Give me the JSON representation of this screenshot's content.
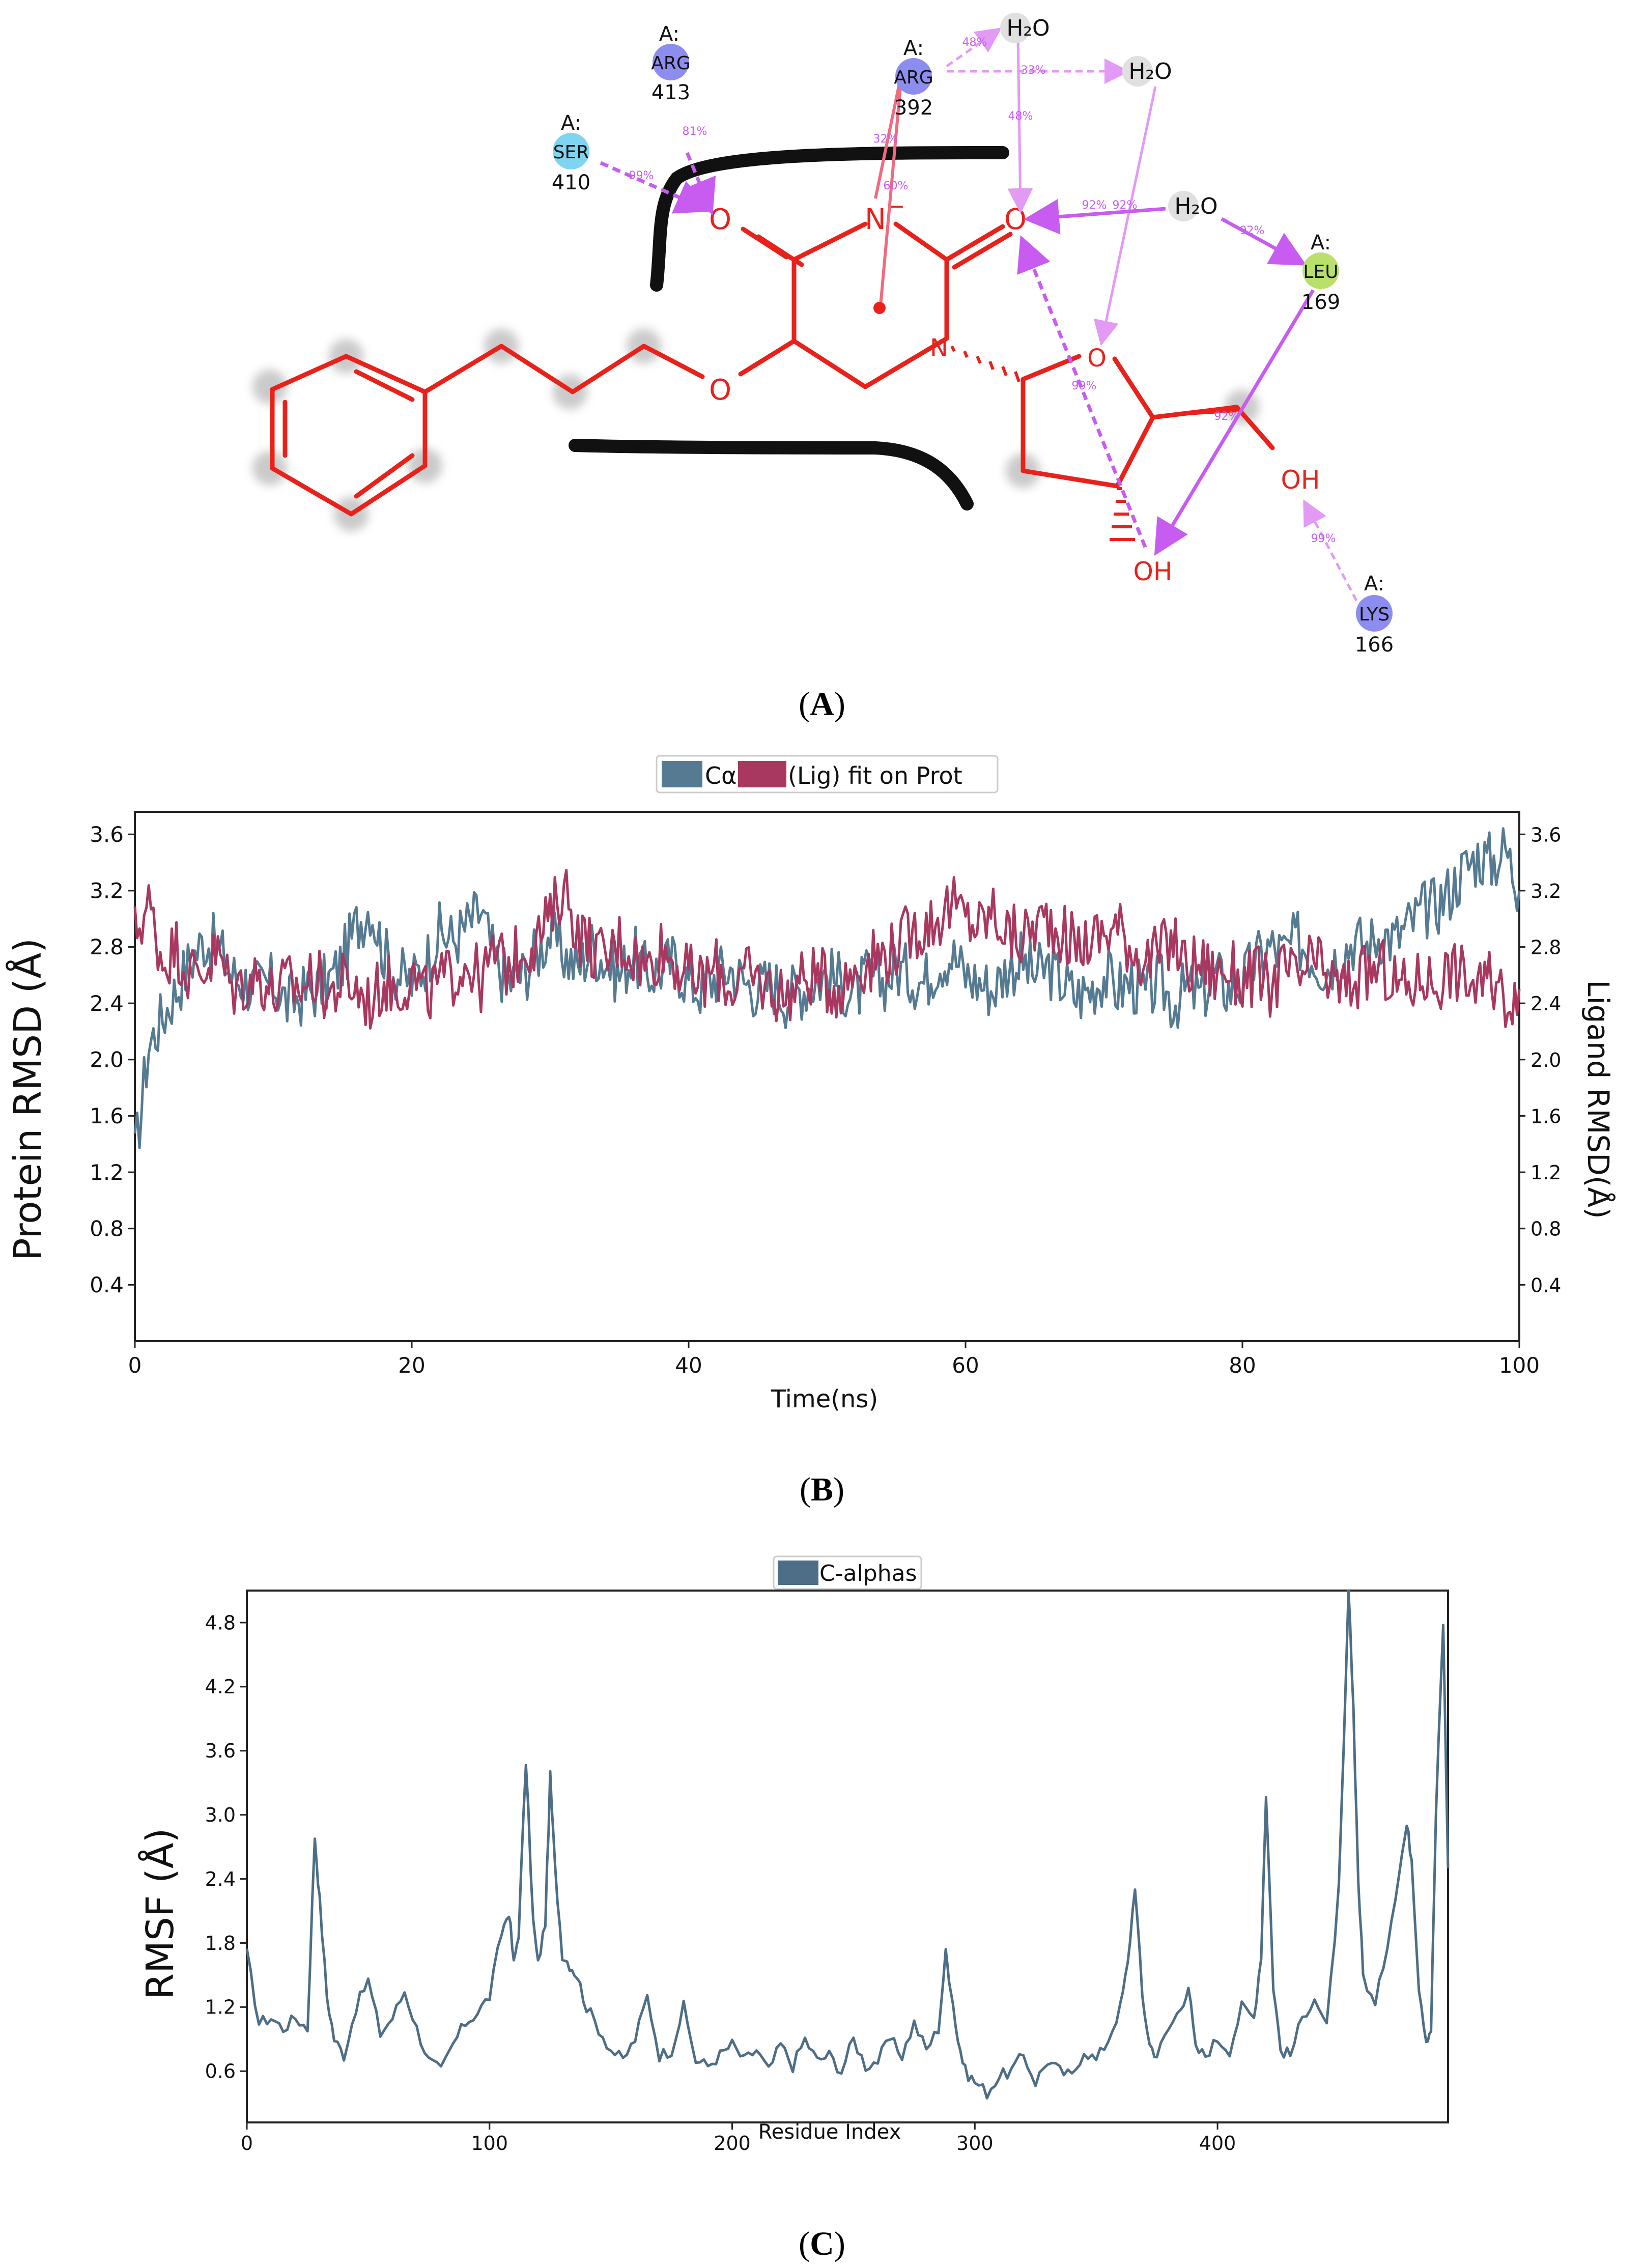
{
  "figure": {
    "caption_a": "(A)",
    "caption_a_letter": "A",
    "caption_b": "(B)",
    "caption_b_letter": "B",
    "caption_c": "(C)",
    "caption_c_letter": "C"
  },
  "panel_a": {
    "title": "ligand interaction diagram",
    "residues": [
      {
        "chain": "A:",
        "name": "ARG",
        "num": "413",
        "color": "#8d8df0"
      },
      {
        "chain": "A:",
        "name": "SER",
        "num": "410",
        "color": "#7fd4f0"
      },
      {
        "chain": "A:",
        "name": "ARG",
        "num": "392",
        "color": "#8d8df0"
      },
      {
        "chain": "A:",
        "name": "LEU",
        "num": "169",
        "color": "#b9e06a"
      },
      {
        "chain": "A:",
        "name": "LYS",
        "num": "166",
        "color": "#8d8df0"
      }
    ],
    "waters": [
      "H₂O",
      "H₂O",
      "H₂O"
    ],
    "atoms": {
      "o1": "O",
      "o2": "O",
      "n_minus": "N",
      "minus": "−",
      "n_ring": "N",
      "o_ether": "O",
      "o_sugar": "O",
      "oh1": "OH",
      "oh2": "OH"
    },
    "percents": {
      "p1": "81%",
      "p2": "99%",
      "p3": "32%",
      "p4": "60%",
      "p5": "48%",
      "p6": "33%",
      "p7": "48%",
      "p8": "92%",
      "p9": "92%",
      "p10": "92%",
      "p11": "99%",
      "p12": "92%",
      "p13": "99%"
    },
    "colors": {
      "ligand": "#e8211b",
      "hbond": "#c85cf0",
      "pipi": "#f06a80",
      "pocket": "#111111"
    }
  },
  "chart_data": [
    {
      "type": "line",
      "title": "",
      "legend": [
        "Cα",
        "(Lig) fit on Prot"
      ],
      "xlabel": "Time(ns)",
      "ylabel": "Protein RMSD (Å)",
      "ylabel2": "Ligand RMSD(Å)",
      "xlim": [
        0,
        100
      ],
      "ylim": [
        0,
        3.76
      ],
      "xticks": [
        "0",
        "20",
        "40",
        "60",
        "80",
        "100"
      ],
      "yticks": [
        "0.4",
        "0.8",
        "1.2",
        "1.6",
        "2.0",
        "2.4",
        "2.8",
        "3.2",
        "3.6"
      ],
      "y2ticks": [
        "0.4",
        "0.8",
        "1.2",
        "1.6",
        "2.0",
        "2.4",
        "2.8",
        "3.2",
        "3.6"
      ],
      "series": [
        {
          "name": "Cα",
          "color": "#557a92",
          "x": [
            0,
            1,
            2,
            3,
            4,
            5,
            6,
            7,
            8,
            9,
            10,
            11,
            12,
            13,
            14,
            15,
            16,
            17,
            18,
            19,
            20,
            21,
            22,
            23,
            24,
            25,
            26,
            27,
            28,
            29,
            30,
            31,
            32,
            33,
            34,
            35,
            36,
            37,
            38,
            39,
            40,
            41,
            42,
            43,
            44,
            45,
            46,
            47,
            48,
            49,
            50,
            51,
            52,
            53,
            54,
            55,
            56,
            57,
            58,
            59,
            60,
            61,
            62,
            63,
            64,
            65,
            66,
            67,
            68,
            69,
            70,
            71,
            72,
            73,
            74,
            75,
            76,
            77,
            78,
            79,
            80,
            81,
            82,
            83,
            84,
            85,
            86,
            87,
            88,
            89,
            90,
            91,
            92,
            93,
            94,
            95,
            96,
            97,
            98,
            99,
            100
          ],
          "y": [
            1.3,
            2.1,
            2.3,
            2.5,
            2.7,
            2.85,
            2.8,
            2.6,
            2.55,
            2.5,
            2.55,
            2.4,
            2.45,
            2.5,
            2.55,
            2.7,
            2.95,
            3.1,
            2.75,
            2.6,
            2.55,
            2.7,
            2.9,
            2.85,
            2.95,
            3.05,
            2.7,
            2.55,
            2.6,
            2.75,
            2.9,
            2.75,
            2.65,
            2.8,
            2.7,
            2.6,
            2.75,
            2.6,
            2.65,
            2.7,
            2.55,
            2.5,
            2.6,
            2.65,
            2.55,
            2.5,
            2.55,
            2.45,
            2.5,
            2.55,
            2.6,
            2.55,
            2.45,
            2.6,
            2.55,
            2.65,
            2.6,
            2.55,
            2.7,
            2.75,
            2.6,
            2.55,
            2.5,
            2.65,
            2.7,
            2.6,
            2.65,
            2.55,
            2.45,
            2.5,
            2.6,
            2.5,
            2.55,
            2.45,
            2.55,
            2.4,
            2.5,
            2.45,
            2.6,
            2.5,
            2.55,
            2.7,
            2.8,
            2.75,
            2.85,
            2.75,
            2.65,
            2.75,
            2.85,
            2.8,
            2.9,
            2.85,
            2.95,
            3.05,
            3.1,
            3.2,
            3.35,
            3.45,
            3.4,
            3.5,
            3.2
          ]
        },
        {
          "name": "(Lig) fit on Prot",
          "color": "#a8385f",
          "x": [
            0,
            1,
            2,
            3,
            4,
            5,
            6,
            7,
            8,
            9,
            10,
            11,
            12,
            13,
            14,
            15,
            16,
            17,
            18,
            19,
            20,
            21,
            22,
            23,
            24,
            25,
            26,
            27,
            28,
            29,
            30,
            31,
            32,
            33,
            34,
            35,
            36,
            37,
            38,
            39,
            40,
            41,
            42,
            43,
            44,
            45,
            46,
            47,
            48,
            49,
            50,
            51,
            52,
            53,
            54,
            55,
            56,
            57,
            58,
            59,
            60,
            61,
            62,
            63,
            64,
            65,
            66,
            67,
            68,
            69,
            70,
            71,
            72,
            73,
            74,
            75,
            76,
            77,
            78,
            79,
            80,
            81,
            82,
            83,
            84,
            85,
            86,
            87,
            88,
            89,
            90,
            91,
            92,
            93,
            94,
            95,
            96,
            97,
            98,
            99,
            100
          ],
          "y": [
            2.9,
            3.1,
            2.7,
            2.8,
            2.6,
            2.65,
            2.75,
            2.5,
            2.55,
            2.6,
            2.45,
            2.55,
            2.5,
            2.6,
            2.45,
            2.55,
            2.5,
            2.4,
            2.55,
            2.5,
            2.6,
            2.45,
            2.55,
            2.6,
            2.7,
            2.55,
            2.75,
            2.65,
            2.8,
            2.85,
            3.0,
            3.25,
            2.9,
            2.8,
            2.7,
            2.85,
            2.75,
            2.65,
            2.8,
            2.7,
            2.6,
            2.55,
            2.65,
            2.5,
            2.6,
            2.55,
            2.5,
            2.45,
            2.55,
            2.6,
            2.55,
            2.5,
            2.65,
            2.7,
            2.75,
            2.8,
            2.9,
            2.95,
            3.0,
            3.1,
            3.0,
            2.95,
            3.05,
            2.9,
            2.85,
            2.95,
            3.0,
            2.9,
            2.8,
            2.85,
            2.9,
            2.95,
            2.8,
            2.7,
            2.75,
            2.85,
            2.65,
            2.7,
            2.6,
            2.65,
            2.55,
            2.6,
            2.5,
            2.65,
            2.55,
            2.7,
            2.6,
            2.5,
            2.55,
            2.6,
            2.65,
            2.55,
            2.5,
            2.6,
            2.55,
            2.65,
            2.6,
            2.5,
            2.55,
            2.45,
            2.5
          ]
        }
      ]
    },
    {
      "type": "line",
      "title": "",
      "legend": [
        "C-alphas"
      ],
      "xlabel": "Residue Index",
      "ylabel": "RMSF (Å)",
      "xlim": [
        0,
        495
      ],
      "ylim": [
        0.12,
        5.1
      ],
      "xticks": [
        "0",
        "100",
        "200",
        "300",
        "400"
      ],
      "yticks": [
        "0.6",
        "1.2",
        "1.8",
        "2.4",
        "3.0",
        "3.6",
        "4.2",
        "4.8"
      ],
      "series": [
        {
          "name": "C-alphas",
          "color": "#4d6e86",
          "x": [
            0,
            5,
            10,
            15,
            20,
            25,
            28,
            30,
            33,
            36,
            40,
            45,
            50,
            55,
            60,
            65,
            70,
            75,
            80,
            85,
            90,
            95,
            100,
            105,
            108,
            110,
            112,
            115,
            118,
            120,
            123,
            125,
            127,
            130,
            133,
            136,
            140,
            145,
            150,
            155,
            160,
            165,
            170,
            175,
            180,
            185,
            190,
            195,
            200,
            205,
            210,
            215,
            220,
            225,
            230,
            235,
            240,
            245,
            250,
            255,
            260,
            265,
            270,
            275,
            280,
            285,
            288,
            290,
            293,
            296,
            300,
            305,
            310,
            315,
            320,
            325,
            330,
            335,
            340,
            345,
            350,
            355,
            360,
            363,
            366,
            369,
            372,
            375,
            380,
            385,
            388,
            391,
            395,
            400,
            405,
            410,
            415,
            418,
            420,
            423,
            426,
            430,
            435,
            440,
            445,
            450,
            452,
            454,
            456,
            458,
            460,
            465,
            470,
            475,
            478,
            480,
            483,
            486,
            488,
            490,
            493,
            495
          ],
          "y": [
            1.7,
            1.05,
            1.1,
            1.0,
            1.1,
            1.0,
            2.8,
            2.2,
            1.3,
            0.9,
            0.75,
            1.2,
            1.45,
            0.95,
            1.1,
            1.35,
            1.0,
            0.7,
            0.6,
            0.85,
            1.05,
            1.15,
            1.3,
            1.9,
            2.1,
            1.6,
            1.9,
            3.5,
            2.0,
            1.6,
            2.0,
            3.35,
            2.5,
            1.7,
            1.6,
            1.5,
            1.2,
            1.0,
            0.8,
            0.7,
            0.9,
            1.3,
            0.75,
            0.8,
            1.2,
            0.7,
            0.65,
            0.75,
            0.85,
            0.7,
            0.8,
            0.6,
            0.85,
            0.65,
            0.9,
            0.7,
            0.75,
            0.6,
            0.9,
            0.65,
            0.7,
            0.9,
            0.75,
            1.05,
            0.8,
            1.0,
            1.7,
            1.4,
            0.9,
            0.6,
            0.5,
            0.4,
            0.55,
            0.6,
            0.75,
            0.5,
            0.7,
            0.6,
            0.55,
            0.8,
            0.7,
            0.9,
            1.2,
            1.6,
            2.35,
            1.3,
            0.85,
            0.75,
            1.0,
            1.2,
            1.4,
            0.8,
            0.75,
            0.9,
            0.8,
            1.2,
            1.1,
            1.7,
            3.2,
            1.4,
            0.8,
            0.75,
            1.1,
            1.3,
            1.0,
            2.3,
            3.6,
            5.1,
            4.0,
            2.4,
            1.5,
            1.2,
            1.8,
            2.5,
            2.9,
            2.6,
            1.4,
            0.9,
            1.0,
            3.0,
            4.8,
            2.5
          ]
        }
      ]
    }
  ]
}
